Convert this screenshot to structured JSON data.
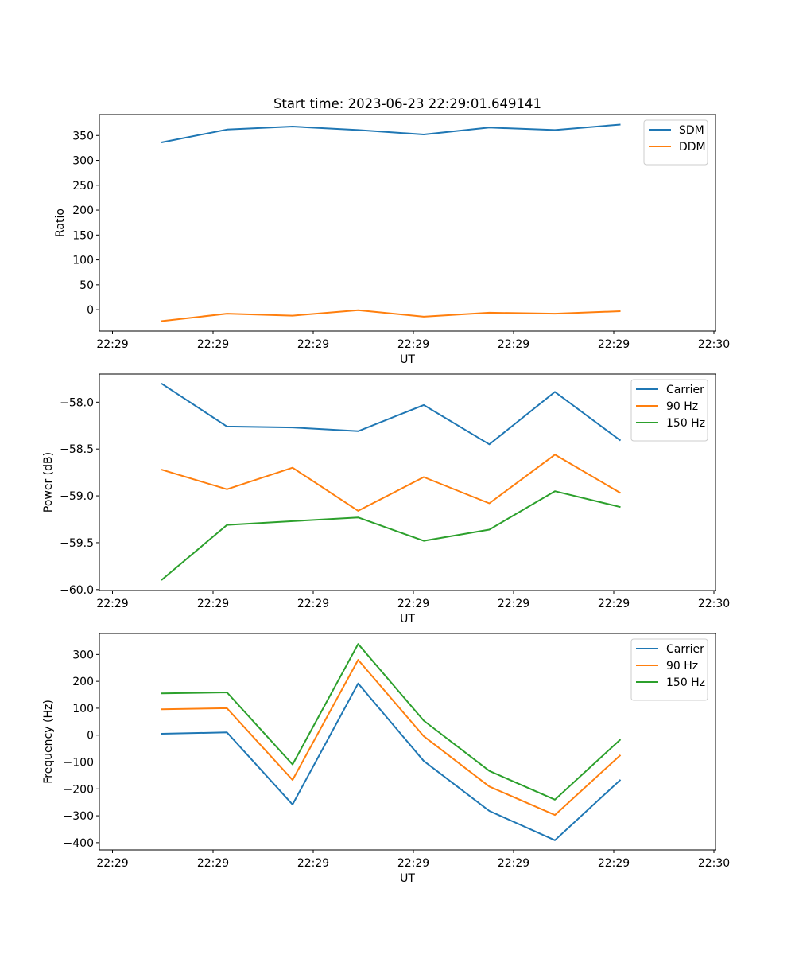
{
  "figure_title": "Start time: 2023-06-23 22:29:01.649141",
  "colors": {
    "blue": "#1f77b4",
    "orange": "#ff7f0e",
    "green": "#2ca02c"
  },
  "chart_data": [
    {
      "type": "line",
      "ylabel": "Ratio",
      "xlabel": "UT",
      "ylim": [
        -43,
        392
      ],
      "yticks": [
        0,
        50,
        100,
        150,
        200,
        250,
        300,
        350
      ],
      "xtick_labels": [
        "22:29",
        "22:29",
        "22:29",
        "22:29",
        "22:29",
        "22:29",
        "22:29",
        "22:30"
      ],
      "grid": false,
      "legend_position": "upper right",
      "series": [
        {
          "name": "SDM",
          "color": "#1f77b4",
          "values": [
            336,
            362,
            368,
            361,
            352,
            366,
            361,
            372
          ]
        },
        {
          "name": "DDM",
          "color": "#ff7f0e",
          "values": [
            -23,
            -8,
            -12,
            -1,
            -14,
            -6,
            -8,
            -3
          ]
        }
      ]
    },
    {
      "type": "line",
      "ylabel": "Power (dB)",
      "xlabel": "UT",
      "ylim": [
        -60.01,
        -57.7
      ],
      "yticks": [
        -60.0,
        -59.5,
        -59.0,
        -58.5,
        -58.0
      ],
      "yticks_labels": [
        "−60.0",
        "−59.5",
        "−59.0",
        "−58.5",
        "−58.0"
      ],
      "xtick_labels": [
        "22:29",
        "22:29",
        "22:29",
        "22:29",
        "22:29",
        "22:29",
        "22:29",
        "22:30"
      ],
      "grid": false,
      "legend_position": "upper right",
      "series": [
        {
          "name": "Carrier",
          "color": "#1f77b4",
          "values": [
            -57.8,
            -58.26,
            -58.27,
            -58.31,
            -58.03,
            -58.45,
            -57.89,
            -58.41
          ]
        },
        {
          "name": "90 Hz",
          "color": "#ff7f0e",
          "values": [
            -58.72,
            -58.93,
            -58.7,
            -59.16,
            -58.8,
            -59.08,
            -58.56,
            -58.97
          ]
        },
        {
          "name": "150 Hz",
          "color": "#2ca02c",
          "values": [
            -59.9,
            -59.31,
            -59.27,
            -59.23,
            -59.48,
            -59.36,
            -58.95,
            -59.12
          ]
        }
      ]
    },
    {
      "type": "line",
      "ylabel": "Frequency (Hz)",
      "xlabel": "UT",
      "ylim": [
        -427,
        378
      ],
      "yticks": [
        -400,
        -300,
        -200,
        -100,
        0,
        100,
        200,
        300
      ],
      "yticks_labels": [
        "−400",
        "−300",
        "−200",
        "−100",
        "0",
        "100",
        "200",
        "300"
      ],
      "xtick_labels": [
        "22:29",
        "22:29",
        "22:29",
        "22:29",
        "22:29",
        "22:29",
        "22:29",
        "22:30"
      ],
      "grid": false,
      "legend_position": "upper right",
      "series": [
        {
          "name": "Carrier",
          "color": "#1f77b4",
          "values": [
            5,
            10,
            -258,
            192,
            -96,
            -282,
            -391,
            -166
          ]
        },
        {
          "name": "90 Hz",
          "color": "#ff7f0e",
          "values": [
            96,
            100,
            -167,
            280,
            -4,
            -191,
            -297,
            -74
          ]
        },
        {
          "name": "150 Hz",
          "color": "#2ca02c",
          "values": [
            155,
            159,
            -109,
            339,
            54,
            -133,
            -240,
            -16
          ]
        }
      ]
    }
  ]
}
